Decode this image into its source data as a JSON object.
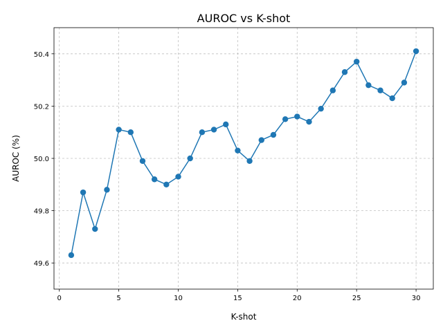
{
  "chart_data": {
    "type": "line",
    "title": "AUROC vs K-shot",
    "xlabel": "K-shot",
    "ylabel": "AUROC (%)",
    "xlim": [
      -0.45,
      31.45
    ],
    "ylim": [
      49.5,
      50.5
    ],
    "xticks": [
      0,
      5,
      10,
      15,
      20,
      25,
      30
    ],
    "xtick_labels": [
      "0",
      "5",
      "10",
      "15",
      "20",
      "25",
      "30"
    ],
    "yticks": [
      49.6,
      49.8,
      50.0,
      50.2,
      50.4
    ],
    "ytick_labels": [
      "49.6",
      "49.8",
      "50.0",
      "50.2",
      "50.4"
    ],
    "grid": true,
    "color": "#1f77b4",
    "marker": "circle",
    "x": [
      1,
      2,
      3,
      4,
      5,
      6,
      7,
      8,
      9,
      10,
      11,
      12,
      13,
      14,
      15,
      16,
      17,
      18,
      19,
      20,
      21,
      22,
      23,
      24,
      25,
      26,
      27,
      28,
      29,
      30
    ],
    "y": [
      49.63,
      49.87,
      49.73,
      49.88,
      50.11,
      50.1,
      49.99,
      49.92,
      49.9,
      49.93,
      50.0,
      50.1,
      50.11,
      50.13,
      50.03,
      49.99,
      50.07,
      50.09,
      50.15,
      50.16,
      50.14,
      50.19,
      50.26,
      50.33,
      50.37,
      50.28,
      50.26,
      50.23,
      50.29,
      50.41
    ]
  }
}
